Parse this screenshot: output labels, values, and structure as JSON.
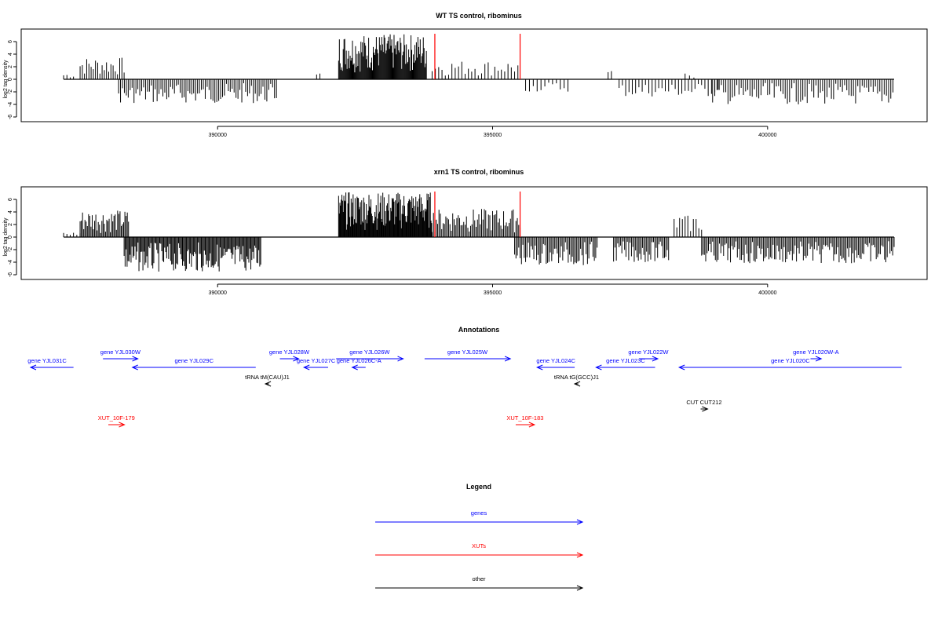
{
  "chart_data": [
    {
      "type": "bar",
      "title": "WT TS control, ribominus",
      "ylabel": "log2 tag density",
      "xlabel": "",
      "ylim": [
        -6,
        8
      ],
      "yticks": [
        "6",
        "4",
        "2",
        "0",
        "-2",
        "-4",
        "-6"
      ],
      "xlim": [
        386600,
        402900
      ],
      "xticks": [
        "390000",
        "395000",
        "400000"
      ],
      "markers": [
        393950,
        395500
      ],
      "marker_color": "#ff0000",
      "segments": [
        {
          "start": 387200,
          "end": 387400,
          "sign": 1,
          "amp": 1.0,
          "step": 60
        },
        {
          "start": 387500,
          "end": 388300,
          "sign": 1,
          "amp": 3.5,
          "step": 40
        },
        {
          "start": 388200,
          "end": 391100,
          "sign": -1,
          "amp": 3.8,
          "step": 35
        },
        {
          "start": 391800,
          "end": 391900,
          "sign": 1,
          "amp": 1.0,
          "step": 60
        },
        {
          "start": 392200,
          "end": 393800,
          "sign": 1,
          "amp": 7.2,
          "step": 14
        },
        {
          "start": 393900,
          "end": 395500,
          "sign": 1,
          "amp": 3.0,
          "step": 60
        },
        {
          "start": 395600,
          "end": 396400,
          "sign": -1,
          "amp": 2.0,
          "step": 70
        },
        {
          "start": 397100,
          "end": 397200,
          "sign": 1,
          "amp": 2.5,
          "step": 60
        },
        {
          "start": 397300,
          "end": 399100,
          "sign": -1,
          "amp": 2.8,
          "step": 60
        },
        {
          "start": 398500,
          "end": 398700,
          "sign": 1,
          "amp": 1.0,
          "step": 80
        },
        {
          "start": 399000,
          "end": 402300,
          "sign": -1,
          "amp": 4.0,
          "step": 40
        }
      ]
    },
    {
      "type": "bar",
      "title": "xrn1 TS control, ribominus",
      "ylabel": "log2 tag density",
      "xlabel": "",
      "ylim": [
        -6,
        8
      ],
      "yticks": [
        "6",
        "4",
        "2",
        "0",
        "-2",
        "-4",
        "-6"
      ],
      "xlim": [
        386600,
        402900
      ],
      "xticks": [
        "390000",
        "395000",
        "400000"
      ],
      "markers": [
        393950,
        395500
      ],
      "marker_color": "#ff0000",
      "segments": [
        {
          "start": 387200,
          "end": 387500,
          "sign": 1,
          "amp": 0.8,
          "step": 60
        },
        {
          "start": 387500,
          "end": 388400,
          "sign": 1,
          "amp": 4.3,
          "step": 22
        },
        {
          "start": 388300,
          "end": 390800,
          "sign": -1,
          "amp": 5.5,
          "step": 18
        },
        {
          "start": 392200,
          "end": 393900,
          "sign": 1,
          "amp": 7.2,
          "step": 12
        },
        {
          "start": 393900,
          "end": 395500,
          "sign": 1,
          "amp": 4.5,
          "step": 25
        },
        {
          "start": 395400,
          "end": 396900,
          "sign": -1,
          "amp": 4.5,
          "step": 25
        },
        {
          "start": 397200,
          "end": 398200,
          "sign": -1,
          "amp": 4.0,
          "step": 25
        },
        {
          "start": 398300,
          "end": 398800,
          "sign": 1,
          "amp": 3.5,
          "step": 50
        },
        {
          "start": 398800,
          "end": 402300,
          "sign": -1,
          "amp": 4.2,
          "step": 25
        }
      ]
    }
  ],
  "annotations": {
    "title": "Annotations",
    "colors": {
      "gene": "#0000ff",
      "xut": "#ff0000",
      "other": "#000000"
    },
    "features": [
      {
        "label": "gene YJL031C",
        "kind": "gene",
        "start": 386600,
        "end": 387400,
        "strand": "-",
        "row": 2
      },
      {
        "label": "gene YJL030W",
        "kind": "gene",
        "start": 387950,
        "end": 388600,
        "strand": "+",
        "row": 1
      },
      {
        "label": "gene YJL029C",
        "kind": "gene",
        "start": 388500,
        "end": 390800,
        "strand": "-",
        "row": 2
      },
      {
        "label": "gene YJL028W",
        "kind": "gene",
        "start": 391250,
        "end": 391600,
        "strand": "+",
        "row": 1
      },
      {
        "label": "gene YJL027C",
        "kind": "gene",
        "start": 391700,
        "end": 392150,
        "strand": "-",
        "row": 2
      },
      {
        "label": "gene YJL026W",
        "kind": "gene",
        "start": 392300,
        "end": 393550,
        "strand": "+",
        "row": 1
      },
      {
        "label": "gene YJL026C-A",
        "kind": "gene",
        "start": 392600,
        "end": 392850,
        "strand": "-",
        "row": 2
      },
      {
        "label": "gene YJL025W",
        "kind": "gene",
        "start": 393950,
        "end": 395550,
        "strand": "+",
        "row": 1
      },
      {
        "label": "gene YJL024C",
        "kind": "gene",
        "start": 396050,
        "end": 396750,
        "strand": "-",
        "row": 2
      },
      {
        "label": "gene YJL023C",
        "kind": "gene",
        "start": 397150,
        "end": 398250,
        "strand": "-",
        "row": 2
      },
      {
        "label": "gene YJL022W",
        "kind": "gene",
        "start": 397950,
        "end": 398300,
        "strand": "+",
        "row": 1
      },
      {
        "label": "gene YJL020W-A",
        "kind": "gene",
        "start": 401150,
        "end": 401350,
        "strand": "+",
        "row": 1
      },
      {
        "label": "gene YJL020C",
        "kind": "gene",
        "start": 398700,
        "end": 402850,
        "strand": "-",
        "row": 2
      },
      {
        "label": "tRNA tM(CAU)J1",
        "kind": "other",
        "start": 390980,
        "end": 391050,
        "strand": "-",
        "row": 3
      },
      {
        "label": "tRNA tG(GCC)J1",
        "kind": "other",
        "start": 396750,
        "end": 396820,
        "strand": "-",
        "row": 3
      },
      {
        "label": "CUT CUT212",
        "kind": "other",
        "start": 399100,
        "end": 399230,
        "strand": "+",
        "row": 4
      },
      {
        "label": "XUT_10F-179",
        "kind": "xut",
        "start": 388050,
        "end": 388350,
        "strand": "+",
        "row": 5
      },
      {
        "label": "XUT_10F-183",
        "kind": "xut",
        "start": 395650,
        "end": 396000,
        "strand": "+",
        "row": 5
      }
    ]
  },
  "legend": {
    "title": "Legend",
    "items": [
      {
        "label": "genes",
        "color": "#0000ff"
      },
      {
        "label": "XUTs",
        "color": "#ff0000"
      },
      {
        "label": "other",
        "color": "#000000"
      }
    ]
  }
}
